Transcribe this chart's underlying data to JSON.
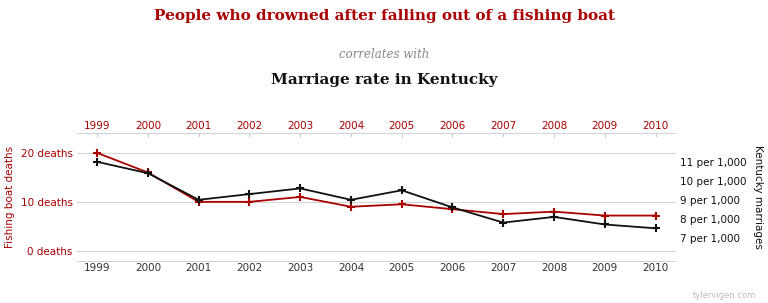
{
  "title_line1": "People who drowned after falling out of a fishing boat",
  "title_line2": "correlates with",
  "title_line3": "Marriage rate in Kentucky",
  "years": [
    1999,
    2000,
    2001,
    2002,
    2003,
    2004,
    2005,
    2006,
    2007,
    2008,
    2009,
    2010
  ],
  "fishing_deaths": [
    20,
    16,
    10,
    10,
    11,
    9,
    9.5,
    8.5,
    7.5,
    8.0,
    7.2,
    7.2
  ],
  "kentucky_marriages": [
    11.0,
    10.4,
    9.0,
    9.3,
    9.6,
    9.0,
    9.5,
    8.6,
    7.8,
    8.1,
    7.7,
    7.5
  ],
  "fishing_color": "#aa0000",
  "marriage_color": "#111111",
  "title_color1": "#aa0000",
  "title_color2": "#888888",
  "title_color3": "#111111",
  "left_yticks": [
    0,
    10,
    20
  ],
  "left_yticklabels": [
    "0 deaths",
    "10 deaths",
    "20 deaths"
  ],
  "left_ylim": [
    -2,
    24
  ],
  "right_yticks": [
    7,
    8,
    9,
    10,
    11
  ],
  "right_yticklabels": [
    "7 per 1,000",
    "8 per 1,000",
    "9 per 1,000",
    "10 per 1,000",
    "11 per 1,000"
  ],
  "right_ylim": [
    5.8,
    12.5
  ],
  "left_ylabel": "Fishing boat deaths",
  "right_ylabel": "Kentucky marriages",
  "legend_label1": "Kentucky marriages",
  "legend_label2": "Fishing boat deaths",
  "watermark": "tylervigen.com",
  "background_color": "#ffffff",
  "grid_color": "#cccccc"
}
